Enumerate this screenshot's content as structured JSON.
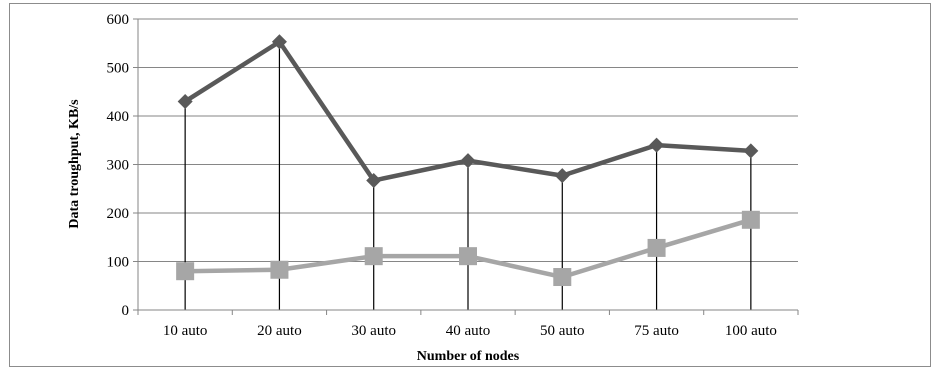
{
  "chart_data": {
    "type": "line",
    "title": "",
    "xlabel": "Number of nodes",
    "ylabel": "Data troughput, KB/s",
    "categories": [
      "10 auto",
      "20 auto",
      "30 auto",
      "40 auto",
      "50 auto",
      "75 auto",
      "100 auto"
    ],
    "ylim": [
      0,
      600
    ],
    "yticks": [
      0,
      100,
      200,
      300,
      400,
      500,
      600
    ],
    "grid": true,
    "legend": "none",
    "series": [
      {
        "values": [
          430,
          553,
          267,
          308,
          277,
          340,
          328
        ],
        "color": "#595959",
        "marker": "diamond"
      },
      {
        "values": [
          80,
          83,
          111,
          111,
          68,
          128,
          186
        ],
        "color": "#a6a6a6",
        "marker": "square"
      }
    ],
    "drop_lines": true
  }
}
